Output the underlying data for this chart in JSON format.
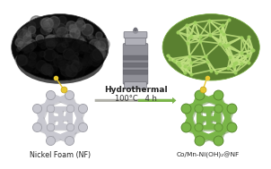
{
  "bg_color": "#ffffff",
  "left_label": "Nickel Foam (NF)",
  "right_label": "Co/Mn-Ni(OH)₂@NF",
  "arrow_text_top": "Hydrothermal",
  "arrow_text_bottom": "100°C   4 h",
  "nf_color": "#c8c8d0",
  "nf_shadow": "#a0a0a8",
  "product_color": "#7ab648",
  "product_dark": "#5a8a30",
  "oval_left_dark": "#0a0a0a",
  "oval_left_mid": "#1a1a1a",
  "oval_left_edge": "#3a3a3a",
  "oval_right_bg": "#6aaa3a",
  "oval_right_net": "#c8e8a0",
  "oval_right_net2": "#9acc60",
  "connector_color": "#e8c830",
  "autoclave_color": "#909098",
  "autoclave_dark": "#707078",
  "autoclave_light": "#b0b0b8",
  "arrow_gray": "#b0b0a8",
  "arrow_green": "#7ab648",
  "fig_width": 3.02,
  "fig_height": 1.89,
  "dpi": 100
}
